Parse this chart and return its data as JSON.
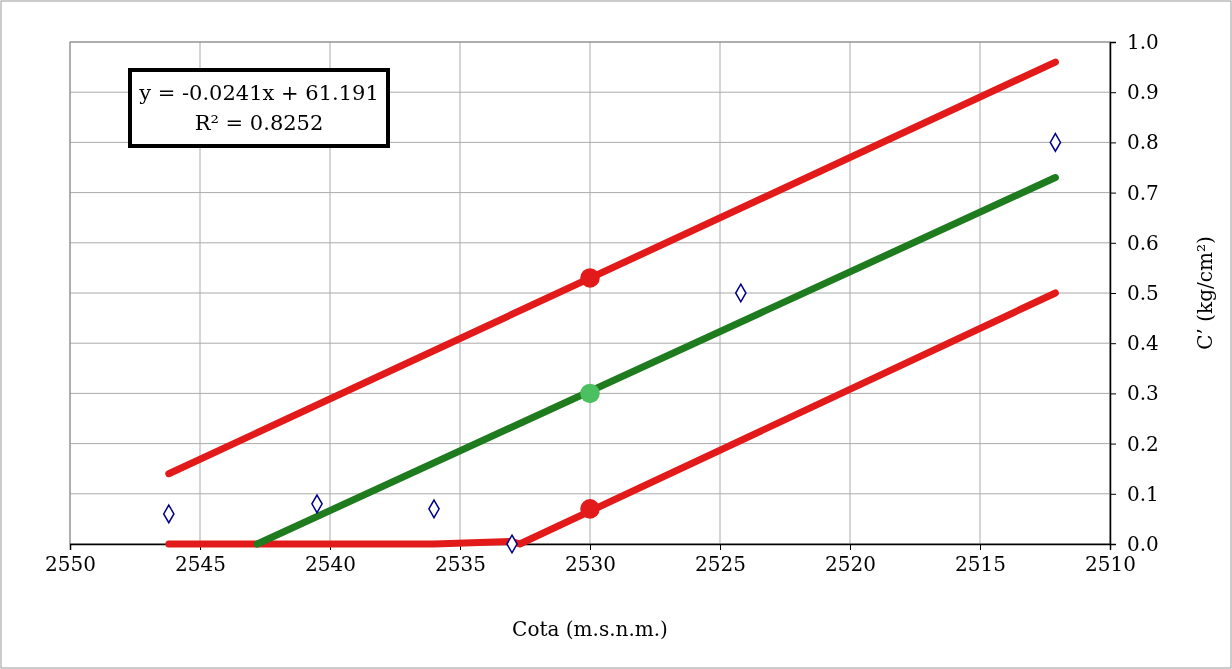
{
  "chart_data": {
    "type": "line",
    "xlabel": "Cota (m.s.n.m.)",
    "ylabel": "C’ (kg/cm²)",
    "xlim": [
      2550,
      2510
    ],
    "xticks": [
      2550,
      2545,
      2540,
      2535,
      2530,
      2525,
      2520,
      2515,
      2510
    ],
    "ylim": [
      0,
      1
    ],
    "yticks": [
      {
        "value": 0,
        "label": "0.0"
      },
      0.1,
      0.2,
      0.3,
      0.4,
      0.5,
      0.6,
      0.7,
      0.8,
      0.9,
      {
        "value": 1,
        "label": "1.0"
      }
    ],
    "grid": true,
    "line_style": "solid",
    "annotations": [
      "y = -0.0241x + 61.191",
      "R² = 0.8252"
    ],
    "series": [
      {
        "color": "#e31a1a",
        "marker": "none",
        "x": [
          2546.2,
          2512.1
        ],
        "values": [
          0.14,
          0.96
        ]
      },
      {
        "color": "#e31a1a",
        "marker": "none",
        "x": [
          2546.2,
          2536,
          2533,
          2532.7,
          2512.1
        ],
        "values": [
          0,
          0,
          0.005,
          0,
          0.5
        ]
      },
      {
        "color": "#1e7b1e",
        "marker": "none",
        "x": [
          2542.8,
          2512.1
        ],
        "values": [
          0,
          0.73
        ]
      },
      {
        "type": "scatter",
        "color": "#e31a1a",
        "marker": "circle",
        "x": [
          2530,
          2530
        ],
        "values": [
          0.53,
          0.07
        ]
      },
      {
        "type": "scatter",
        "color": "#4cc060",
        "marker": "circle",
        "x": [
          2530
        ],
        "values": [
          0.3
        ]
      },
      {
        "type": "scatter",
        "color": "#00008b",
        "marker": "diamond",
        "x": [
          2546.2,
          2540.5,
          2536,
          2533,
          2524.2,
          2512.1
        ],
        "values": [
          0.06,
          0.08,
          0.07,
          0,
          0.5,
          0.8
        ]
      }
    ]
  }
}
